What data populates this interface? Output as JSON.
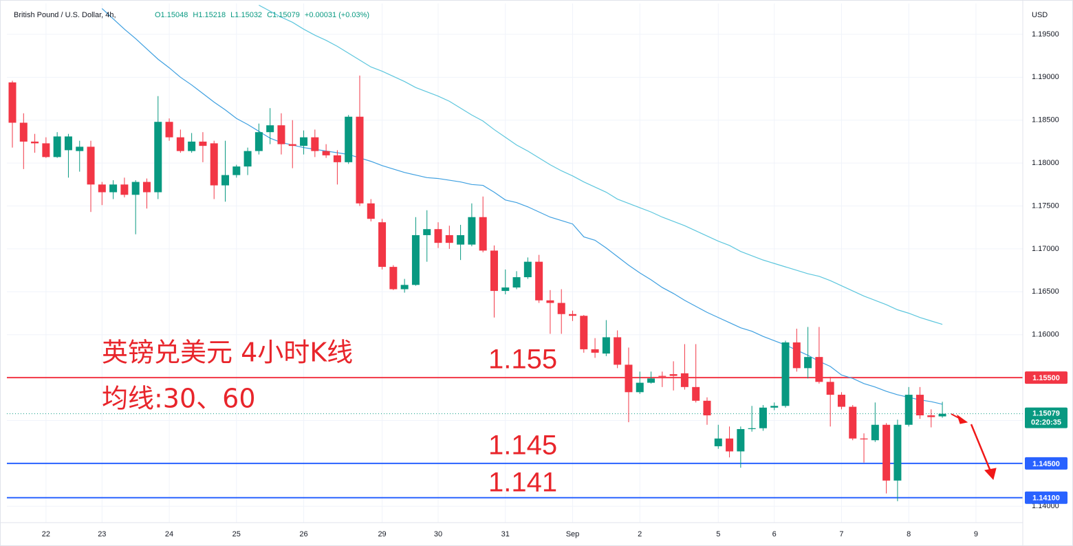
{
  "chart_data": {
    "type": "candlestick",
    "title": "British Pound / U.S. Dollar, 4h,",
    "header_values": [
      "O1.15048",
      "H1.15218",
      "L1.15032",
      "C1.15079",
      "+0.00031 (+0.03%)"
    ],
    "currency": "USD",
    "categories": [
      null,
      null,
      null,
      "22",
      null,
      null,
      null,
      null,
      "23",
      null,
      null,
      null,
      null,
      null,
      "24",
      null,
      null,
      null,
      null,
      null,
      "25",
      null,
      null,
      null,
      null,
      null,
      "26",
      null,
      null,
      null,
      null,
      null,
      null,
      "29",
      null,
      null,
      null,
      null,
      "30",
      null,
      null,
      null,
      null,
      null,
      "31",
      null,
      null,
      null,
      null,
      null,
      "Sep",
      null,
      null,
      null,
      null,
      null,
      "2",
      null,
      null,
      null,
      null,
      null,
      null,
      "5",
      null,
      null,
      null,
      null,
      "6",
      null,
      null,
      null,
      null,
      null,
      "7",
      null,
      null,
      null,
      null,
      null,
      "8",
      null,
      null,
      null,
      null,
      null,
      "9",
      null,
      null,
      null
    ],
    "open": [
      1.1894,
      1.1847,
      1.1825,
      1.1823,
      1.1807,
      1.1815,
      1.1814,
      1.1819,
      1.1775,
      1.1766,
      1.1775,
      1.1763,
      1.1778,
      1.1766,
      1.1848,
      1.183,
      1.1814,
      1.1825,
      1.1823,
      1.1774,
      1.1786,
      1.1796,
      1.1814,
      1.1836,
      1.1844,
      1.1822,
      1.182,
      1.183,
      1.1814,
      1.1809,
      1.1801,
      1.1854,
      1.1753,
      1.1731,
      1.1679,
      1.1653,
      1.1658,
      1.1716,
      1.1723,
      1.1716,
      1.1705,
      1.1705,
      1.1737,
      1.1698,
      1.1651,
      1.1655,
      1.1667,
      1.1685,
      1.164,
      1.1637,
      1.1624,
      1.1622,
      1.1583,
      1.1578,
      1.1597,
      1.1565,
      1.1533,
      1.1544,
      1.1552,
      1.1554,
      1.1555,
      1.1539,
      1.1523,
      1.147,
      1.1479,
      1.1464,
      1.149,
      1.1491,
      1.1515,
      1.1517,
      1.1591,
      1.1561,
      1.1574,
      1.1545,
      1.153,
      1.1516,
      1.1479,
      1.1477,
      1.1495,
      1.143,
      1.1495,
      1.153,
      1.1506,
      1.15048,
      null,
      null,
      null,
      null,
      null,
      null
    ],
    "high": [
      1.1896,
      1.1858,
      1.1834,
      1.183,
      1.1836,
      1.1834,
      1.1826,
      1.1826,
      1.1778,
      1.178,
      1.1783,
      1.178,
      1.1782,
      1.1878,
      1.1852,
      1.1839,
      1.1835,
      1.1836,
      1.1826,
      1.1826,
      1.1798,
      1.1818,
      1.1846,
      1.1864,
      1.1858,
      1.185,
      1.1838,
      1.1839,
      1.1822,
      1.1815,
      1.1856,
      1.1902,
      1.1758,
      1.1735,
      1.1681,
      1.1665,
      1.1737,
      1.1745,
      1.1731,
      1.1727,
      1.1728,
      1.1753,
      1.1761,
      1.1704,
      1.1676,
      1.1674,
      1.169,
      1.1693,
      1.1652,
      1.1653,
      1.1628,
      1.1623,
      1.1596,
      1.1617,
      1.1605,
      1.1585,
      1.1557,
      1.1557,
      1.1557,
      1.1569,
      1.1589,
      1.1589,
      1.1527,
      1.1495,
      1.1493,
      1.1493,
      1.1517,
      1.1518,
      1.1521,
      1.1593,
      1.1607,
      1.1609,
      1.1609,
      1.1551,
      1.1533,
      1.1518,
      1.1485,
      1.1521,
      1.1497,
      1.1501,
      1.1539,
      1.1539,
      1.1513,
      1.15218,
      null,
      null,
      null,
      null,
      null,
      null
    ],
    "low": [
      1.1818,
      1.1793,
      1.1812,
      1.1806,
      1.1806,
      1.1783,
      1.179,
      1.1743,
      1.1751,
      1.1758,
      1.176,
      1.1717,
      1.1747,
      1.1758,
      1.1826,
      1.1812,
      1.1812,
      1.1801,
      1.1758,
      1.1755,
      1.1783,
      1.1786,
      1.181,
      1.1822,
      1.181,
      1.1794,
      1.181,
      1.1807,
      1.1806,
      1.1775,
      1.1799,
      1.175,
      1.1732,
      1.1676,
      1.1652,
      1.1649,
      1.1657,
      1.1685,
      1.1701,
      1.17,
      1.1687,
      1.1703,
      1.1696,
      1.162,
      1.1647,
      1.1653,
      1.1665,
      1.1637,
      1.1601,
      1.1601,
      1.1616,
      1.1579,
      1.1573,
      1.1575,
      1.1561,
      1.1498,
      1.1531,
      1.1543,
      1.1539,
      1.1535,
      1.1536,
      1.1521,
      1.1495,
      1.1467,
      1.1457,
      1.1445,
      1.1487,
      1.1488,
      1.1512,
      1.1515,
      1.1557,
      1.1549,
      1.1543,
      1.1493,
      1.1513,
      1.1477,
      1.1451,
      1.1475,
      1.1415,
      1.1406,
      1.1493,
      1.1502,
      1.1492,
      1.15032,
      null,
      null,
      null,
      null,
      null,
      null
    ],
    "close": [
      1.1847,
      1.1825,
      1.1823,
      1.1807,
      1.1831,
      1.1831,
      1.1819,
      1.1775,
      1.1766,
      1.1775,
      1.1763,
      1.1778,
      1.1766,
      1.1848,
      1.183,
      1.1814,
      1.1825,
      1.182,
      1.1774,
      1.1786,
      1.1796,
      1.1814,
      1.1836,
      1.1844,
      1.1822,
      1.182,
      1.183,
      1.1814,
      1.1809,
      1.1801,
      1.1854,
      1.1753,
      1.1735,
      1.1679,
      1.1653,
      1.1658,
      1.1716,
      1.1723,
      1.1707,
      1.1707,
      1.1716,
      1.1737,
      1.1698,
      1.1651,
      1.1655,
      1.1667,
      1.1685,
      1.164,
      1.1637,
      1.1624,
      1.1622,
      1.1583,
      1.1579,
      1.1597,
      1.1565,
      1.1533,
      1.1544,
      1.1549,
      1.1551,
      1.1552,
      1.1539,
      1.1523,
      1.1506,
      1.1479,
      1.1464,
      1.149,
      1.1491,
      1.1515,
      1.1517,
      1.1591,
      1.1561,
      1.1574,
      1.1545,
      1.153,
      1.1516,
      1.1479,
      1.1478,
      1.1495,
      1.143,
      1.1495,
      1.153,
      1.1506,
      1.1504,
      1.15079,
      null,
      null,
      null,
      null,
      null,
      null
    ],
    "up_color": "#089981",
    "down_color": "#f23645",
    "overlays": [
      {
        "color": "#3d9fe0",
        "values": [
          null,
          null,
          null,
          null,
          null,
          null,
          null,
          null,
          1.198,
          1.1968,
          1.1956,
          1.1945,
          1.1933,
          1.1921,
          1.1911,
          1.19,
          1.1891,
          1.1881,
          1.1871,
          1.1862,
          1.1852,
          1.1845,
          1.1837,
          1.1829,
          1.1824,
          1.1821,
          1.1818,
          1.1816,
          1.1814,
          1.1812,
          1.181,
          1.1806,
          1.1802,
          1.1797,
          1.1793,
          1.1789,
          1.1786,
          1.1783,
          1.1782,
          1.178,
          1.1778,
          1.1775,
          1.1774,
          1.1766,
          1.1757,
          1.1754,
          1.1749,
          1.1743,
          1.1737,
          1.1733,
          1.1729,
          1.1714,
          1.171,
          1.1701,
          1.1691,
          1.1681,
          1.1672,
          1.1664,
          1.1655,
          1.1648,
          1.164,
          1.1633,
          1.1626,
          1.162,
          1.1614,
          1.1608,
          1.1604,
          1.1598,
          1.1593,
          1.1588,
          1.1582,
          1.1576,
          1.1569,
          1.1563,
          1.1553,
          1.1549,
          1.1543,
          1.1539,
          1.1534,
          1.153,
          1.1527,
          1.1524,
          1.1522,
          1.1519,
          null,
          null,
          null,
          null,
          null,
          null
        ]
      },
      {
        "color": "#5cc6dd",
        "values": [
          null,
          null,
          null,
          null,
          null,
          null,
          null,
          null,
          null,
          null,
          null,
          null,
          null,
          null,
          null,
          null,
          null,
          null,
          null,
          null,
          null,
          null,
          1.1984,
          1.1977,
          1.197,
          1.1964,
          1.1956,
          1.1949,
          1.1943,
          1.1936,
          1.1928,
          1.192,
          1.1912,
          1.1907,
          1.1901,
          1.1895,
          1.1888,
          1.1883,
          1.1878,
          1.1872,
          1.1864,
          1.1856,
          1.1849,
          1.1839,
          1.183,
          1.1821,
          1.1814,
          1.1806,
          1.1798,
          1.1791,
          1.1785,
          1.1778,
          1.1772,
          1.1766,
          1.1758,
          1.1753,
          1.1748,
          1.1743,
          1.1737,
          1.1732,
          1.1727,
          1.1721,
          1.1715,
          1.1709,
          1.1704,
          1.1697,
          1.1692,
          1.1687,
          1.1683,
          1.1679,
          1.1675,
          1.1671,
          1.1668,
          1.1663,
          1.1657,
          1.1651,
          1.1645,
          1.164,
          1.1635,
          1.1629,
          1.1625,
          1.162,
          1.1616,
          1.1612,
          null,
          null,
          null,
          null,
          null,
          null
        ]
      }
    ],
    "ylim": [
      1.1381,
      1.1986
    ],
    "yticks": [
      {
        "value": 1.14,
        "label": "1.14000"
      },
      {
        "value": 1.145,
        "label": "1.14500"
      },
      {
        "value": 1.15,
        "label": "1.15000"
      },
      {
        "value": 1.155,
        "label": "1.15500"
      },
      {
        "value": 1.16,
        "label": "1.16000"
      },
      {
        "value": 1.165,
        "label": "1.16500"
      },
      {
        "value": 1.17,
        "label": "1.17000"
      },
      {
        "value": 1.175,
        "label": "1.17500"
      },
      {
        "value": 1.18,
        "label": "1.18000"
      },
      {
        "value": 1.185,
        "label": "1.18500"
      },
      {
        "value": 1.19,
        "label": "1.19000"
      },
      {
        "value": 1.195,
        "label": "1.19500"
      }
    ],
    "grid": true,
    "levels": [
      {
        "value": 1.155,
        "label": "1.15500",
        "color": "#f23645"
      },
      {
        "value": 1.145,
        "label": "1.14500",
        "color": "#2962ff"
      },
      {
        "value": 1.141,
        "label": "1.14100",
        "color": "#2962ff"
      }
    ],
    "price_tag": {
      "label": "1.15079",
      "countdown": "02:20:35",
      "color": "#089981"
    },
    "annotations": [
      "英镑兑美元 4小时K线",
      "均线:30、60",
      "1.155",
      "1.145",
      "1.141"
    ]
  }
}
